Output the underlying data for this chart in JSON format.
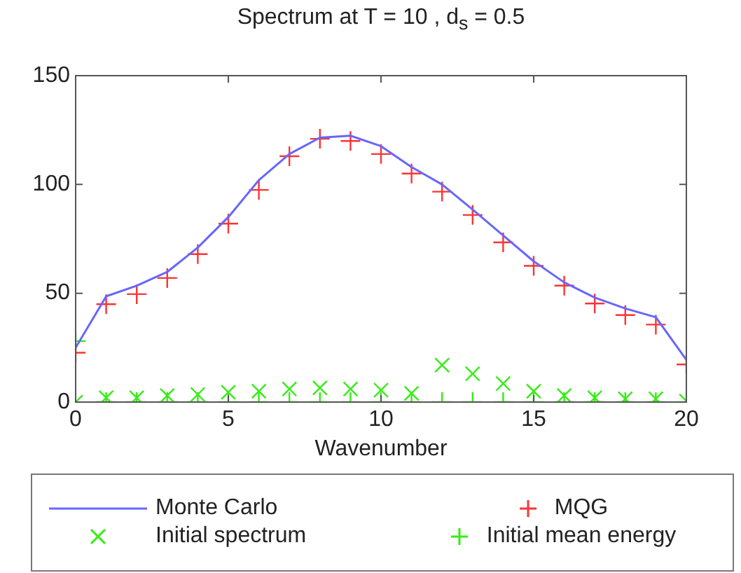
{
  "chart_data": {
    "type": "line",
    "title": "Spectrum at T = 10 ,  d$_{s}$ = 0.5",
    "xlabel": "Wavenumber",
    "x": [
      0,
      1,
      2,
      3,
      4,
      5,
      6,
      7,
      8,
      9,
      10,
      11,
      12,
      13,
      14,
      15,
      16,
      17,
      18,
      19,
      20
    ],
    "xlim": [
      0,
      20
    ],
    "xticks": [
      0,
      5,
      10,
      15,
      20
    ],
    "ylim": [
      0,
      150
    ],
    "yticks": [
      0,
      50,
      100,
      150
    ],
    "grid": false,
    "legend": "bottom",
    "series": [
      {
        "name": "Monte Carlo",
        "type": "line",
        "color": "#6666ff",
        "marker": "none",
        "line_style": "solid",
        "values": [
          25,
          48.6,
          53.5,
          59.8,
          71,
          85,
          102,
          114,
          121.5,
          122.4,
          117.6,
          108,
          100,
          88.5,
          76.6,
          64.7,
          55,
          48,
          43,
          39,
          19.4
        ]
      },
      {
        "name": "MQG",
        "type": "scatter",
        "color": "#ff3333",
        "marker": "plus",
        "values": [
          22.7,
          45,
          49.6,
          57,
          68,
          82,
          97.5,
          113,
          121,
          120,
          114,
          105,
          96.7,
          86,
          73.4,
          62.6,
          53.5,
          45.3,
          40,
          35.6,
          17.3
        ]
      },
      {
        "name": "Initial spectrum",
        "type": "scatter",
        "color": "#33ee11",
        "marker": "cross",
        "values": [
          0,
          2,
          2,
          3,
          3.5,
          4.5,
          5,
          6,
          6.5,
          6,
          5.5,
          4,
          17,
          13,
          8.5,
          5,
          3,
          2,
          1.5,
          1.5,
          0.5
        ]
      },
      {
        "name": "Initial mean energy",
        "type": "scatter",
        "color": "#33ee11",
        "marker": "plus",
        "values": [
          28,
          0,
          0,
          0,
          0,
          0,
          0,
          0,
          0,
          0,
          0,
          0,
          0,
          0,
          0,
          0,
          0,
          0,
          0,
          0,
          0
        ]
      }
    ]
  }
}
